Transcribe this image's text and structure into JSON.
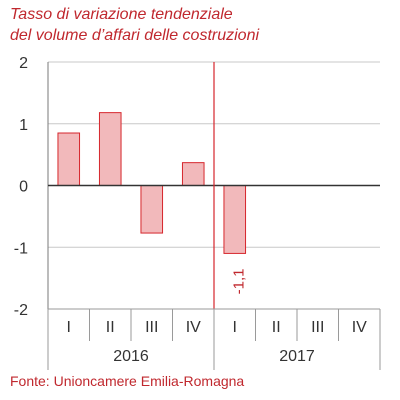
{
  "chart_data": {
    "type": "bar",
    "title": [
      "Tasso di variazione tendenziale",
      "del volume d’affari delle costruzioni"
    ],
    "source": "Fonte: Unioncamere Emilia-Romagna",
    "xlabel": "",
    "ylabel": "",
    "ylim": [
      -2,
      2
    ],
    "yticks": [
      2,
      1,
      0,
      -1,
      -2
    ],
    "grid": true,
    "groups": [
      {
        "label": "2016",
        "categories": [
          "I",
          "II",
          "III",
          "IV"
        ]
      },
      {
        "label": "2017",
        "categories": [
          "I",
          "II",
          "III",
          "IV"
        ]
      }
    ],
    "values": [
      0.85,
      1.18,
      -0.77,
      0.37,
      -1.1,
      null,
      null,
      null
    ],
    "data_labels": [
      {
        "index": 4,
        "text": "-1,1"
      }
    ],
    "colors": {
      "bar_fill": "#f2b9bb",
      "bar_stroke": "#d6262c",
      "text": "#c0282e",
      "marker_line": "#d6262c"
    }
  }
}
